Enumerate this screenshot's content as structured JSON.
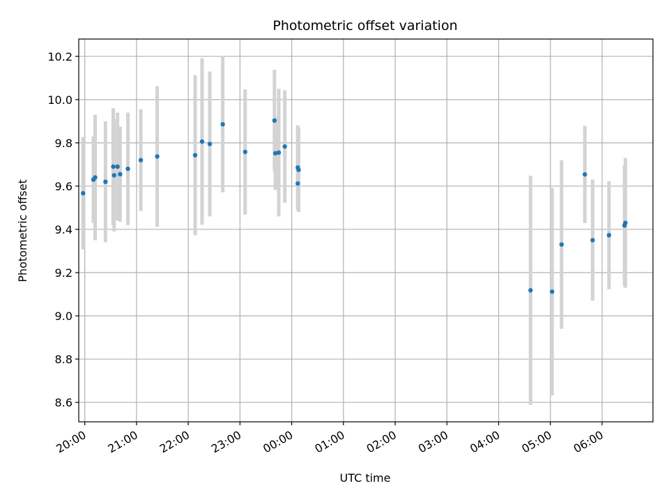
{
  "chart_data": {
    "type": "scatter",
    "title": "Photometric offset variation",
    "xlabel": "UTC time",
    "ylabel": "Photometric offset",
    "grid": true,
    "x_axis": "time",
    "xlim": [
      "19:53",
      "06:59"
    ],
    "ylim": [
      8.51,
      10.28
    ],
    "x_ticks": [
      "20:00",
      "21:00",
      "22:00",
      "23:00",
      "00:00",
      "01:00",
      "02:00",
      "03:00",
      "04:00",
      "05:00",
      "06:00"
    ],
    "y_ticks": [
      "8.6",
      "8.8",
      "9.0",
      "9.2",
      "9.4",
      "9.6",
      "9.8",
      "10.0",
      "10.2"
    ],
    "colors": {
      "point": "#1f77b4",
      "errorbar": "#d3d3d3",
      "grid": "#b0b0b0"
    },
    "points": [
      {
        "time": "19:58",
        "y": 9.567,
        "err": 0.26
      },
      {
        "time": "20:10",
        "y": 9.63,
        "err": 0.2
      },
      {
        "time": "20:12",
        "y": 9.64,
        "err": 0.29
      },
      {
        "time": "20:24",
        "y": 9.62,
        "err": 0.28
      },
      {
        "time": "20:33",
        "y": 9.69,
        "err": 0.27
      },
      {
        "time": "20:34",
        "y": 9.65,
        "err": 0.26
      },
      {
        "time": "20:38",
        "y": 9.69,
        "err": 0.25
      },
      {
        "time": "20:41",
        "y": 9.655,
        "err": 0.22
      },
      {
        "time": "20:50",
        "y": 9.68,
        "err": 0.26
      },
      {
        "time": "21:05",
        "y": 9.72,
        "err": 0.235
      },
      {
        "time": "21:24",
        "y": 9.737,
        "err": 0.325
      },
      {
        "time": "22:08",
        "y": 9.743,
        "err": 0.37
      },
      {
        "time": "22:16",
        "y": 9.806,
        "err": 0.385
      },
      {
        "time": "22:25",
        "y": 9.795,
        "err": 0.335
      },
      {
        "time": "22:40",
        "y": 9.886,
        "err": 0.315
      },
      {
        "time": "23:06",
        "y": 9.758,
        "err": 0.29
      },
      {
        "time": "23:40",
        "y": 9.903,
        "err": 0.235
      },
      {
        "time": "23:41",
        "y": 9.752,
        "err": 0.17
      },
      {
        "time": "23:45",
        "y": 9.755,
        "err": 0.295
      },
      {
        "time": "23:52",
        "y": 9.783,
        "err": 0.26
      },
      {
        "time": "00:07",
        "y": 9.612,
        "err": 0.12
      },
      {
        "time": "00:07",
        "y": 9.686,
        "err": 0.195
      },
      {
        "time": "00:08",
        "y": 9.675,
        "err": 0.195
      },
      {
        "time": "04:37",
        "y": 9.118,
        "err": 0.53
      },
      {
        "time": "05:02",
        "y": 9.112,
        "err": 0.48
      },
      {
        "time": "05:13",
        "y": 9.33,
        "err": 0.39
      },
      {
        "time": "05:40",
        "y": 9.654,
        "err": 0.225
      },
      {
        "time": "05:49",
        "y": 9.35,
        "err": 0.28
      },
      {
        "time": "06:08",
        "y": 9.373,
        "err": 0.25
      },
      {
        "time": "06:26",
        "y": 9.418,
        "err": 0.28
      },
      {
        "time": "06:27",
        "y": 9.43,
        "err": 0.3
      }
    ]
  }
}
